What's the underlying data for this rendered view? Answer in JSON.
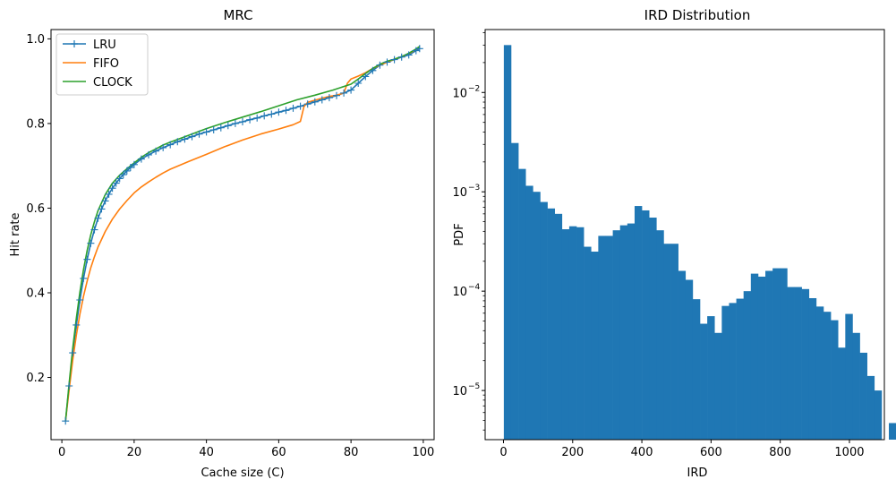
{
  "colors": {
    "lru": "#1f77b4",
    "fifo": "#ff7f0e",
    "clock": "#2ca02c",
    "hist": "#1f77b4"
  },
  "chart_data": [
    {
      "type": "line",
      "title": "MRC",
      "xlabel": "Cache size (C)",
      "ylabel": "Hit rate",
      "xlim": [
        -3,
        103
      ],
      "ylim": [
        0.053,
        1.022
      ],
      "xticks": [
        0,
        20,
        40,
        60,
        80,
        100
      ],
      "yticks": [
        0.2,
        0.4,
        0.6,
        0.8,
        1.0
      ],
      "xtick_labels": [
        "0",
        "20",
        "40",
        "60",
        "80",
        "100"
      ],
      "ytick_labels": [
        "0.2",
        "0.4",
        "0.6",
        "0.8",
        "1.0"
      ],
      "grid": false,
      "legend": "top-left",
      "series": [
        {
          "name": "LRU",
          "color": "#1f77b4",
          "marker": "+",
          "x": [
            1,
            2,
            3,
            4,
            5,
            6,
            7,
            8,
            9,
            10,
            11,
            12,
            13,
            14,
            15,
            16,
            17,
            18,
            19,
            20,
            22,
            24,
            26,
            28,
            30,
            32,
            34,
            36,
            38,
            40,
            42,
            44,
            46,
            48,
            50,
            52,
            54,
            56,
            58,
            60,
            62,
            64,
            66,
            68,
            70,
            72,
            74,
            76,
            78,
            80,
            82,
            84,
            86,
            88,
            90,
            92,
            94,
            96,
            98,
            99
          ],
          "y": [
            0.097,
            0.18,
            0.258,
            0.324,
            0.383,
            0.434,
            0.479,
            0.517,
            0.549,
            0.576,
            0.598,
            0.617,
            0.633,
            0.647,
            0.659,
            0.67,
            0.679,
            0.688,
            0.696,
            0.703,
            0.716,
            0.726,
            0.735,
            0.743,
            0.75,
            0.757,
            0.763,
            0.769,
            0.775,
            0.78,
            0.785,
            0.79,
            0.795,
            0.8,
            0.804,
            0.809,
            0.813,
            0.818,
            0.822,
            0.827,
            0.831,
            0.836,
            0.841,
            0.846,
            0.851,
            0.856,
            0.861,
            0.866,
            0.872,
            0.879,
            0.895,
            0.911,
            0.925,
            0.938,
            0.945,
            0.951,
            0.957,
            0.962,
            0.972,
            0.977
          ]
        },
        {
          "name": "FIFO",
          "color": "#ff7f0e",
          "x": [
            1,
            2,
            3,
            4,
            5,
            6,
            7,
            8,
            9,
            10,
            12,
            14,
            16,
            18,
            20,
            22,
            24,
            26,
            28,
            30,
            35,
            40,
            45,
            50,
            55,
            60,
            62,
            64,
            66,
            67,
            68,
            70,
            72,
            74,
            76,
            78,
            79,
            80,
            82,
            84,
            86,
            88,
            90,
            92,
            94,
            96,
            98,
            99
          ],
          "y": [
            0.097,
            0.17,
            0.24,
            0.3,
            0.35,
            0.392,
            0.428,
            0.459,
            0.485,
            0.508,
            0.545,
            0.574,
            0.598,
            0.618,
            0.636,
            0.65,
            0.662,
            0.673,
            0.683,
            0.692,
            0.71,
            0.727,
            0.745,
            0.761,
            0.775,
            0.787,
            0.792,
            0.797,
            0.805,
            0.84,
            0.85,
            0.855,
            0.86,
            0.864,
            0.867,
            0.872,
            0.895,
            0.905,
            0.912,
            0.92,
            0.93,
            0.938,
            0.945,
            0.952,
            0.958,
            0.965,
            0.975,
            0.982
          ]
        },
        {
          "name": "CLOCK",
          "color": "#2ca02c",
          "x": [
            1,
            2,
            3,
            4,
            5,
            6,
            7,
            8,
            9,
            10,
            12,
            14,
            16,
            18,
            20,
            22,
            24,
            26,
            28,
            30,
            35,
            40,
            45,
            50,
            55,
            60,
            65,
            70,
            75,
            80,
            82,
            84,
            86,
            88,
            90,
            92,
            94,
            96,
            98,
            99
          ],
          "y": [
            0.097,
            0.185,
            0.268,
            0.34,
            0.402,
            0.455,
            0.5,
            0.537,
            0.568,
            0.594,
            0.632,
            0.659,
            0.678,
            0.693,
            0.707,
            0.72,
            0.731,
            0.74,
            0.749,
            0.756,
            0.772,
            0.788,
            0.802,
            0.815,
            0.828,
            0.842,
            0.856,
            0.867,
            0.879,
            0.893,
            0.905,
            0.918,
            0.93,
            0.94,
            0.947,
            0.952,
            0.958,
            0.966,
            0.976,
            0.982
          ]
        }
      ]
    },
    {
      "type": "bar",
      "title": "IRD Distribution",
      "xlabel": "IRD",
      "ylabel": "PDF",
      "yscale": "log",
      "xlim": [
        -53,
        1101
      ],
      "ylim": [
        3.2e-06,
        0.043
      ],
      "xticks": [
        0,
        200,
        400,
        600,
        800,
        1000
      ],
      "xtick_labels": [
        "0",
        "200",
        "400",
        "600",
        "800",
        "1000"
      ],
      "yticks": [
        1e-05,
        0.0001,
        0.001,
        0.01
      ],
      "ytick_labels": [
        "10",
        "10",
        "10",
        "10"
      ],
      "ytick_exponents": [
        "−5",
        "−4",
        "−3",
        "−2"
      ],
      "grid": false,
      "bin_width": 21,
      "bin_start": 1,
      "values": [
        0.03,
        0.0031,
        0.0017,
        0.00115,
        0.001,
        0.00079,
        0.00068,
        0.0006,
        0.00042,
        0.00045,
        0.00044,
        0.00028,
        0.00025,
        0.00036,
        0.00036,
        0.00041,
        0.00046,
        0.00048,
        0.00072,
        0.00065,
        0.00055,
        0.00041,
        0.0003,
        0.0003,
        0.00016,
        0.00013,
        8.3e-05,
        4.7e-05,
        5.6e-05,
        3.8e-05,
        7.1e-05,
        7.6e-05,
        8.4e-05,
        0.0001,
        0.00015,
        0.00014,
        0.00016,
        0.00017,
        0.00017,
        0.00011,
        0.00011,
        0.000105,
        8.5e-05,
        7e-05,
        6.2e-05,
        5.1e-05,
        2.7e-05,
        5.9e-05,
        3.8e-05,
        2.4e-05,
        1.4e-05,
        1e-05,
        0,
        4.7e-06
      ]
    }
  ]
}
